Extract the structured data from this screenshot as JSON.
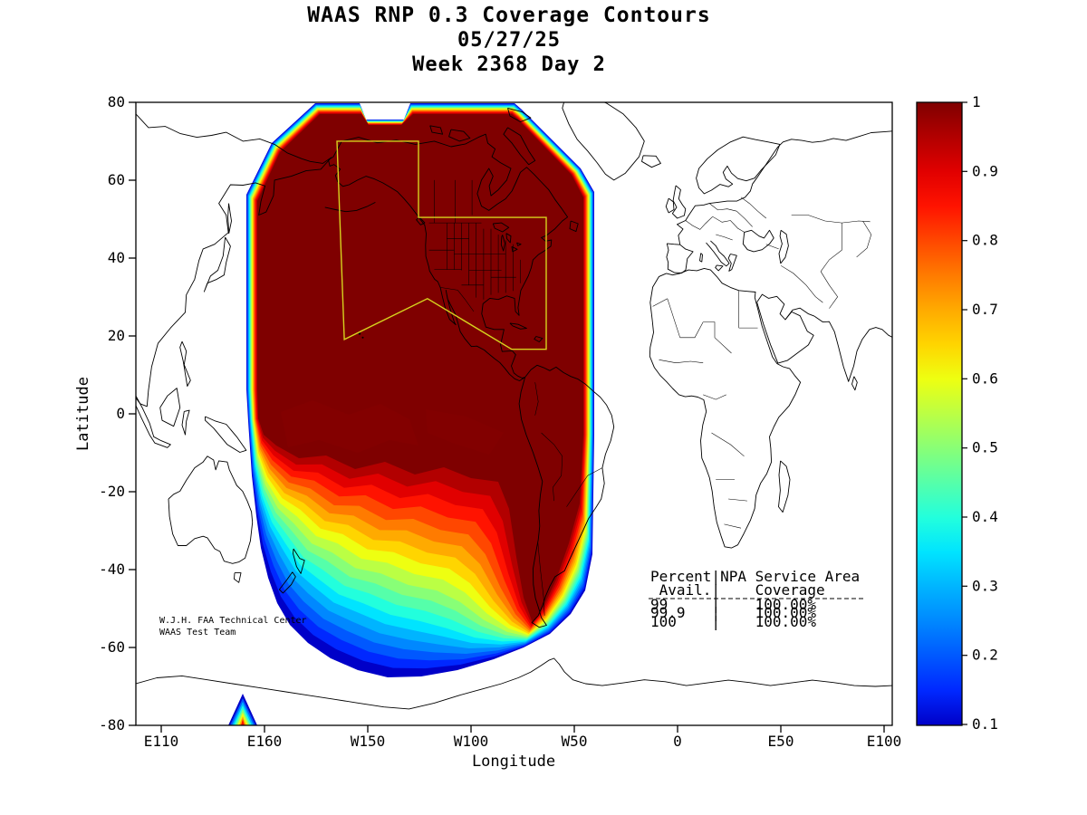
{
  "title": {
    "line1": "WAAS RNP 0.3 Coverage Contours",
    "line2": "05/27/25",
    "line3": "Week 2368 Day 2"
  },
  "axes": {
    "xlabel": "Longitude",
    "ylabel": "Latitude"
  },
  "annotations": {
    "credit_line1": "W.J.H. FAA Technical Center",
    "credit_line2": "WAAS Test Team",
    "table": {
      "header_line1": "Percent|NPA Service Area",
      "header_line2": " Avail.|    Coverage",
      "row1": "99     |    100.00%",
      "row2": "99.9   |    100.00%",
      "row3": "100    |    100.00%"
    }
  },
  "chart_data": {
    "type": "heatmap",
    "subtype": "filled contour availability coverage map, Pacific-centered world map",
    "title": "WAAS RNP 0.3 Coverage Contours",
    "date": "05/27/25",
    "week": 2368,
    "day": 2,
    "xlabel": "Longitude",
    "ylabel": "Latitude",
    "x_tick_labels": [
      "E110",
      "E160",
      "W150",
      "W100",
      "W50",
      "0",
      "E50",
      "E100"
    ],
    "y_tick_labels": [
      "80",
      "60",
      "40",
      "20",
      "0",
      "-20",
      "-40",
      "-60",
      "-80"
    ],
    "grid": false,
    "colorbar": {
      "min": 0.1,
      "max": 1.0,
      "position": "right",
      "tick_labels": [
        "1",
        "0.9",
        "0.8",
        "0.7",
        "0.6",
        "0.5",
        "0.4",
        "0.3",
        "0.2",
        "0.1"
      ]
    },
    "contour_levels": [
      {
        "value": 0.1,
        "color": "#0000c8"
      },
      {
        "value": 0.15,
        "color": "#0028ff"
      },
      {
        "value": 0.2,
        "color": "#0058ff"
      },
      {
        "value": 0.25,
        "color": "#0088ff"
      },
      {
        "value": 0.3,
        "color": "#00b4ff"
      },
      {
        "value": 0.35,
        "color": "#00e4ff"
      },
      {
        "value": 0.4,
        "color": "#22ffdd"
      },
      {
        "value": 0.45,
        "color": "#55ffaa"
      },
      {
        "value": 0.5,
        "color": "#88ff77"
      },
      {
        "value": 0.55,
        "color": "#bbff44"
      },
      {
        "value": 0.6,
        "color": "#eeff11"
      },
      {
        "value": 0.65,
        "color": "#ffd500"
      },
      {
        "value": 0.7,
        "color": "#ffaa00"
      },
      {
        "value": 0.75,
        "color": "#ff7b00"
      },
      {
        "value": 0.8,
        "color": "#ff4700"
      },
      {
        "value": 0.85,
        "color": "#ff1300"
      },
      {
        "value": 0.9,
        "color": "#e10000"
      },
      {
        "value": 0.95,
        "color": "#b20000"
      },
      {
        "value": 1.0,
        "color": "#7f0000"
      }
    ],
    "npa_table": {
      "columns": [
        "Percent Avail.",
        "NPA Service Area Coverage"
      ],
      "rows": [
        [
          "99",
          "100.00%"
        ],
        [
          "99.9",
          "100.00%"
        ],
        [
          "100",
          "100.00%"
        ]
      ]
    },
    "service_area_outline_color": "#d6d21e"
  }
}
